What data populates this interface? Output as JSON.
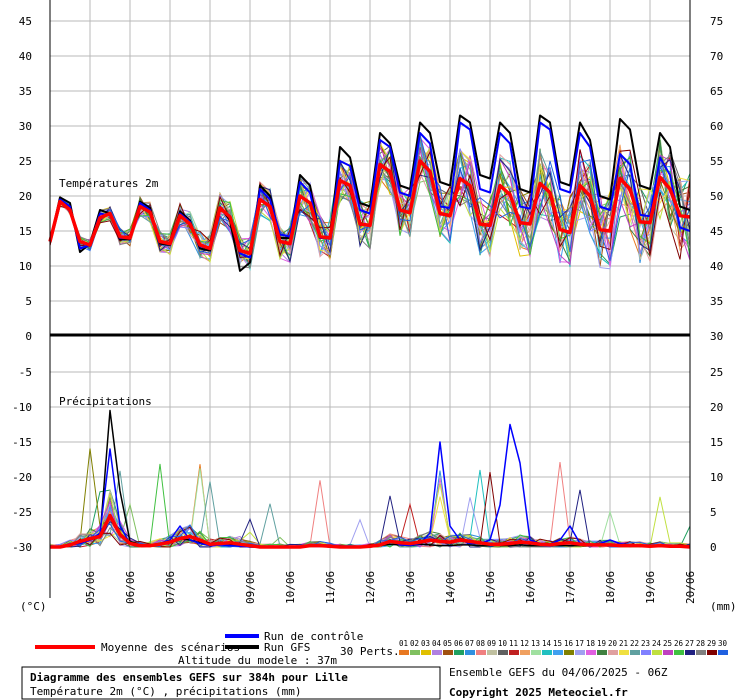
{
  "chart_data": [
    {
      "type": "line",
      "panel_label": "Températures 2m",
      "ylim_left": [
        0,
        45
      ],
      "left_ticks": [
        0,
        5,
        10,
        15,
        20,
        25,
        30,
        35,
        40,
        45
      ],
      "right_ticks": [
        30,
        35,
        40,
        45,
        50,
        55,
        60,
        65,
        70,
        75
      ],
      "x_dates": [
        "05/06",
        "06/06",
        "07/06",
        "08/06",
        "09/06",
        "10/06",
        "11/06",
        "12/06",
        "13/06",
        "14/06",
        "15/06",
        "16/06",
        "17/06",
        "18/06",
        "19/06",
        "20/06"
      ],
      "mean_series": {
        "name": "Moyenne des scénarios",
        "values": [
          13.5,
          19.2,
          18,
          13.5,
          13,
          16.9,
          17.5,
          14.2,
          14,
          18.5,
          17.7,
          13.5,
          13.2,
          17.2,
          16,
          13,
          12.5,
          18.3,
          17,
          12.2,
          11.8,
          19.5,
          18.5,
          13.5,
          13.2,
          20,
          19,
          14.2,
          14,
          22.2,
          21.5,
          16,
          15.8,
          24.5,
          23.5,
          18,
          17.6,
          25,
          23.5,
          17.5,
          17.2,
          22.5,
          21.5,
          16,
          15.8,
          21.5,
          20.2,
          16.2,
          16,
          21.8,
          20.5,
          15.2,
          14.8,
          21.5,
          20,
          15.2,
          15,
          22.5,
          21,
          16.3,
          16.2,
          22.7,
          21,
          17.2,
          17
        ]
      },
      "control_series": {
        "name": "Run de contrôle",
        "values": [
          13.5,
          19.5,
          18.5,
          12.5,
          13,
          17.5,
          17.2,
          14,
          14,
          19,
          18,
          13.4,
          13.2,
          17.5,
          16.3,
          12.8,
          12.5,
          18.5,
          16.8,
          11.8,
          11.2,
          21,
          19.5,
          14.5,
          14.2,
          22,
          20.5,
          14,
          14,
          25,
          24.3,
          18,
          17.5,
          28,
          27,
          20.5,
          20,
          29,
          27.5,
          18.5,
          18.3,
          30.5,
          29.5,
          21,
          20.5,
          29,
          27.5,
          18.5,
          18.2,
          30.5,
          29.5,
          21,
          20.5,
          29,
          27,
          18.5,
          18,
          26,
          24.5,
          17.3,
          17.1,
          25.5,
          23,
          15.5,
          15
        ]
      },
      "gfs_series": {
        "name": "Run GFS",
        "values": [
          13.5,
          19.8,
          19,
          12,
          13.2,
          18,
          17.5,
          13.8,
          13.8,
          19.2,
          18.3,
          13.2,
          13,
          17.8,
          16.5,
          12.5,
          12.2,
          18.5,
          16.5,
          9.3,
          10.5,
          21.5,
          20,
          14,
          14,
          23,
          21.5,
          14,
          14,
          27,
          25.5,
          19,
          18.5,
          29,
          27.5,
          21.5,
          21,
          30.5,
          29,
          22,
          21.5,
          31.5,
          30.5,
          23,
          22.5,
          30.5,
          29,
          21,
          20.5,
          31.5,
          30.5,
          22,
          21.5,
          30.5,
          28,
          20,
          19.5,
          31,
          29.5,
          21.5,
          21,
          29,
          27,
          18.5,
          18
        ]
      },
      "members_count": 30
    },
    {
      "type": "line",
      "panel_label": "Précipitations",
      "ylim_left": [
        -30,
        0
      ],
      "left_ticks": [
        -30,
        -25,
        -20,
        -15,
        -10,
        -5,
        0
      ],
      "right_ticks": [
        0,
        5,
        10,
        15,
        20,
        25,
        30
      ],
      "mean_series": {
        "name": "Moyenne des scénarios",
        "values": [
          0,
          0,
          0.3,
          0.8,
          1.2,
          1.5,
          4.5,
          1.8,
          0.5,
          0.2,
          0.2,
          0.4,
          0.7,
          1.2,
          1.5,
          1,
          0.4,
          0.5,
          0.6,
          0.4,
          0.2,
          0,
          0,
          0,
          0,
          0,
          0.2,
          0.2,
          0.1,
          0,
          0,
          0,
          0.1,
          0.3,
          0.8,
          0.6,
          0.5,
          0.7,
          1,
          0.8,
          0.7,
          1,
          0.8,
          0.6,
          0.4,
          0.4,
          0.5,
          0.7,
          0.6,
          0.4,
          0.3,
          0.5,
          0.6,
          0.4,
          0.3,
          0.3,
          0.3,
          0.2,
          0.2,
          0.2,
          0.1,
          0.2,
          0.1,
          0.1,
          0
        ]
      },
      "control_series": {
        "name": "Run de contrôle",
        "values": [
          0,
          0,
          0.3,
          0.5,
          1,
          2,
          14,
          3,
          0.5,
          0.2,
          0.3,
          0.5,
          1,
          3,
          1,
          0.5,
          0.2,
          0.3,
          0.2,
          0.1,
          0,
          0,
          0,
          0,
          0,
          0,
          0.3,
          0.1,
          0,
          0,
          0,
          0,
          0,
          0.2,
          1,
          0.3,
          0.2,
          0.5,
          2,
          15,
          3,
          1,
          0.5,
          0.5,
          1,
          6,
          17.5,
          12,
          1,
          0.5,
          0.4,
          1,
          3,
          0.5,
          0.3,
          0.5,
          1,
          0.5,
          0.3,
          0.2,
          0.2,
          0.3,
          0.2,
          0.1,
          0
        ]
      },
      "gfs_series": {
        "name": "Run GFS",
        "values": [
          0,
          0,
          0.3,
          0.6,
          1,
          1.5,
          19.5,
          8,
          0.8,
          0.3,
          0.2,
          0.4,
          0.8,
          1.2,
          1,
          0.6,
          0.3,
          0.5,
          0.4,
          0.2,
          0,
          0,
          0,
          0,
          0,
          0,
          0.1,
          0.1,
          0,
          0,
          0,
          0,
          0,
          0.2,
          0.4,
          0.3,
          0.2,
          0.4,
          0.3,
          0.2,
          0.2,
          0.3,
          0.3,
          0.2,
          0.2,
          0.2,
          0.2,
          0.3,
          0.2,
          0.2,
          0.2,
          0.2,
          0.2,
          0.2,
          0.2,
          0.2,
          0.2,
          0.2,
          0.2,
          0.2,
          0.1,
          0.1,
          0.1,
          0,
          0
        ]
      },
      "members_count": 30
    }
  ],
  "axis_units": {
    "left": "(°C)",
    "right": "(mm)"
  },
  "legend": {
    "mean": "Moyenne des scénarios",
    "control": "Run de contrôle",
    "gfs": "Run GFS",
    "perts": "30 Perts.",
    "altitude": "Altitude du modele : 37m",
    "member_numbers": [
      "01",
      "02",
      "03",
      "04",
      "05",
      "06",
      "07",
      "08",
      "09",
      "10",
      "11",
      "12",
      "13",
      "14",
      "15",
      "16",
      "17",
      "18",
      "19",
      "20",
      "21",
      "22",
      "23",
      "24",
      "25",
      "26",
      "27",
      "28",
      "29",
      "30"
    ],
    "member_colors": [
      "#e87820",
      "#80c060",
      "#e0c000",
      "#b080e0",
      "#a05010",
      "#20a060",
      "#3090e0",
      "#f08080",
      "#c0c0a0",
      "#606060",
      "#c02020",
      "#f0a060",
      "#a0e0a0",
      "#20c0c0",
      "#40a0f0",
      "#808000",
      "#a0a0f0",
      "#e060e0",
      "#408040",
      "#e0a0a0",
      "#f0e040",
      "#60a0a0",
      "#8080ff",
      "#c0e040",
      "#c040c0",
      "#40c040",
      "#202080",
      "#808080",
      "#800000",
      "#2060e0"
    ],
    "colors": {
      "mean": "#ff0000",
      "control": "#0000ff",
      "gfs": "#000000"
    }
  },
  "title_box": {
    "title": "Diagramme des ensembles GEFS sur 384h pour Lille",
    "subtitle": "Température 2m (°C) , précipitations (mm)"
  },
  "run_info": "Ensemble GEFS du 04/06/2025 - 06Z",
  "copyright": "Copyright 2025 Meteociel.fr"
}
